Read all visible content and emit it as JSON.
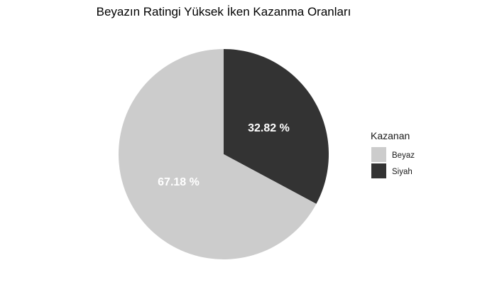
{
  "chart_data": {
    "type": "pie",
    "title": "Beyazın Ratingi Yüksek İken Kazanma Oranları",
    "legend_title": "Kazanan",
    "legend_position": "right",
    "slices": [
      {
        "name": "Siyah",
        "value": 32.82,
        "label": "32.82 %",
        "color": "#333333"
      },
      {
        "name": "Beyaz",
        "value": 67.18,
        "label": "67.18 %",
        "color": "#cccccc"
      }
    ],
    "legend": [
      {
        "name": "Beyaz",
        "color": "#cccccc"
      },
      {
        "name": "Siyah",
        "color": "#333333"
      }
    ]
  }
}
